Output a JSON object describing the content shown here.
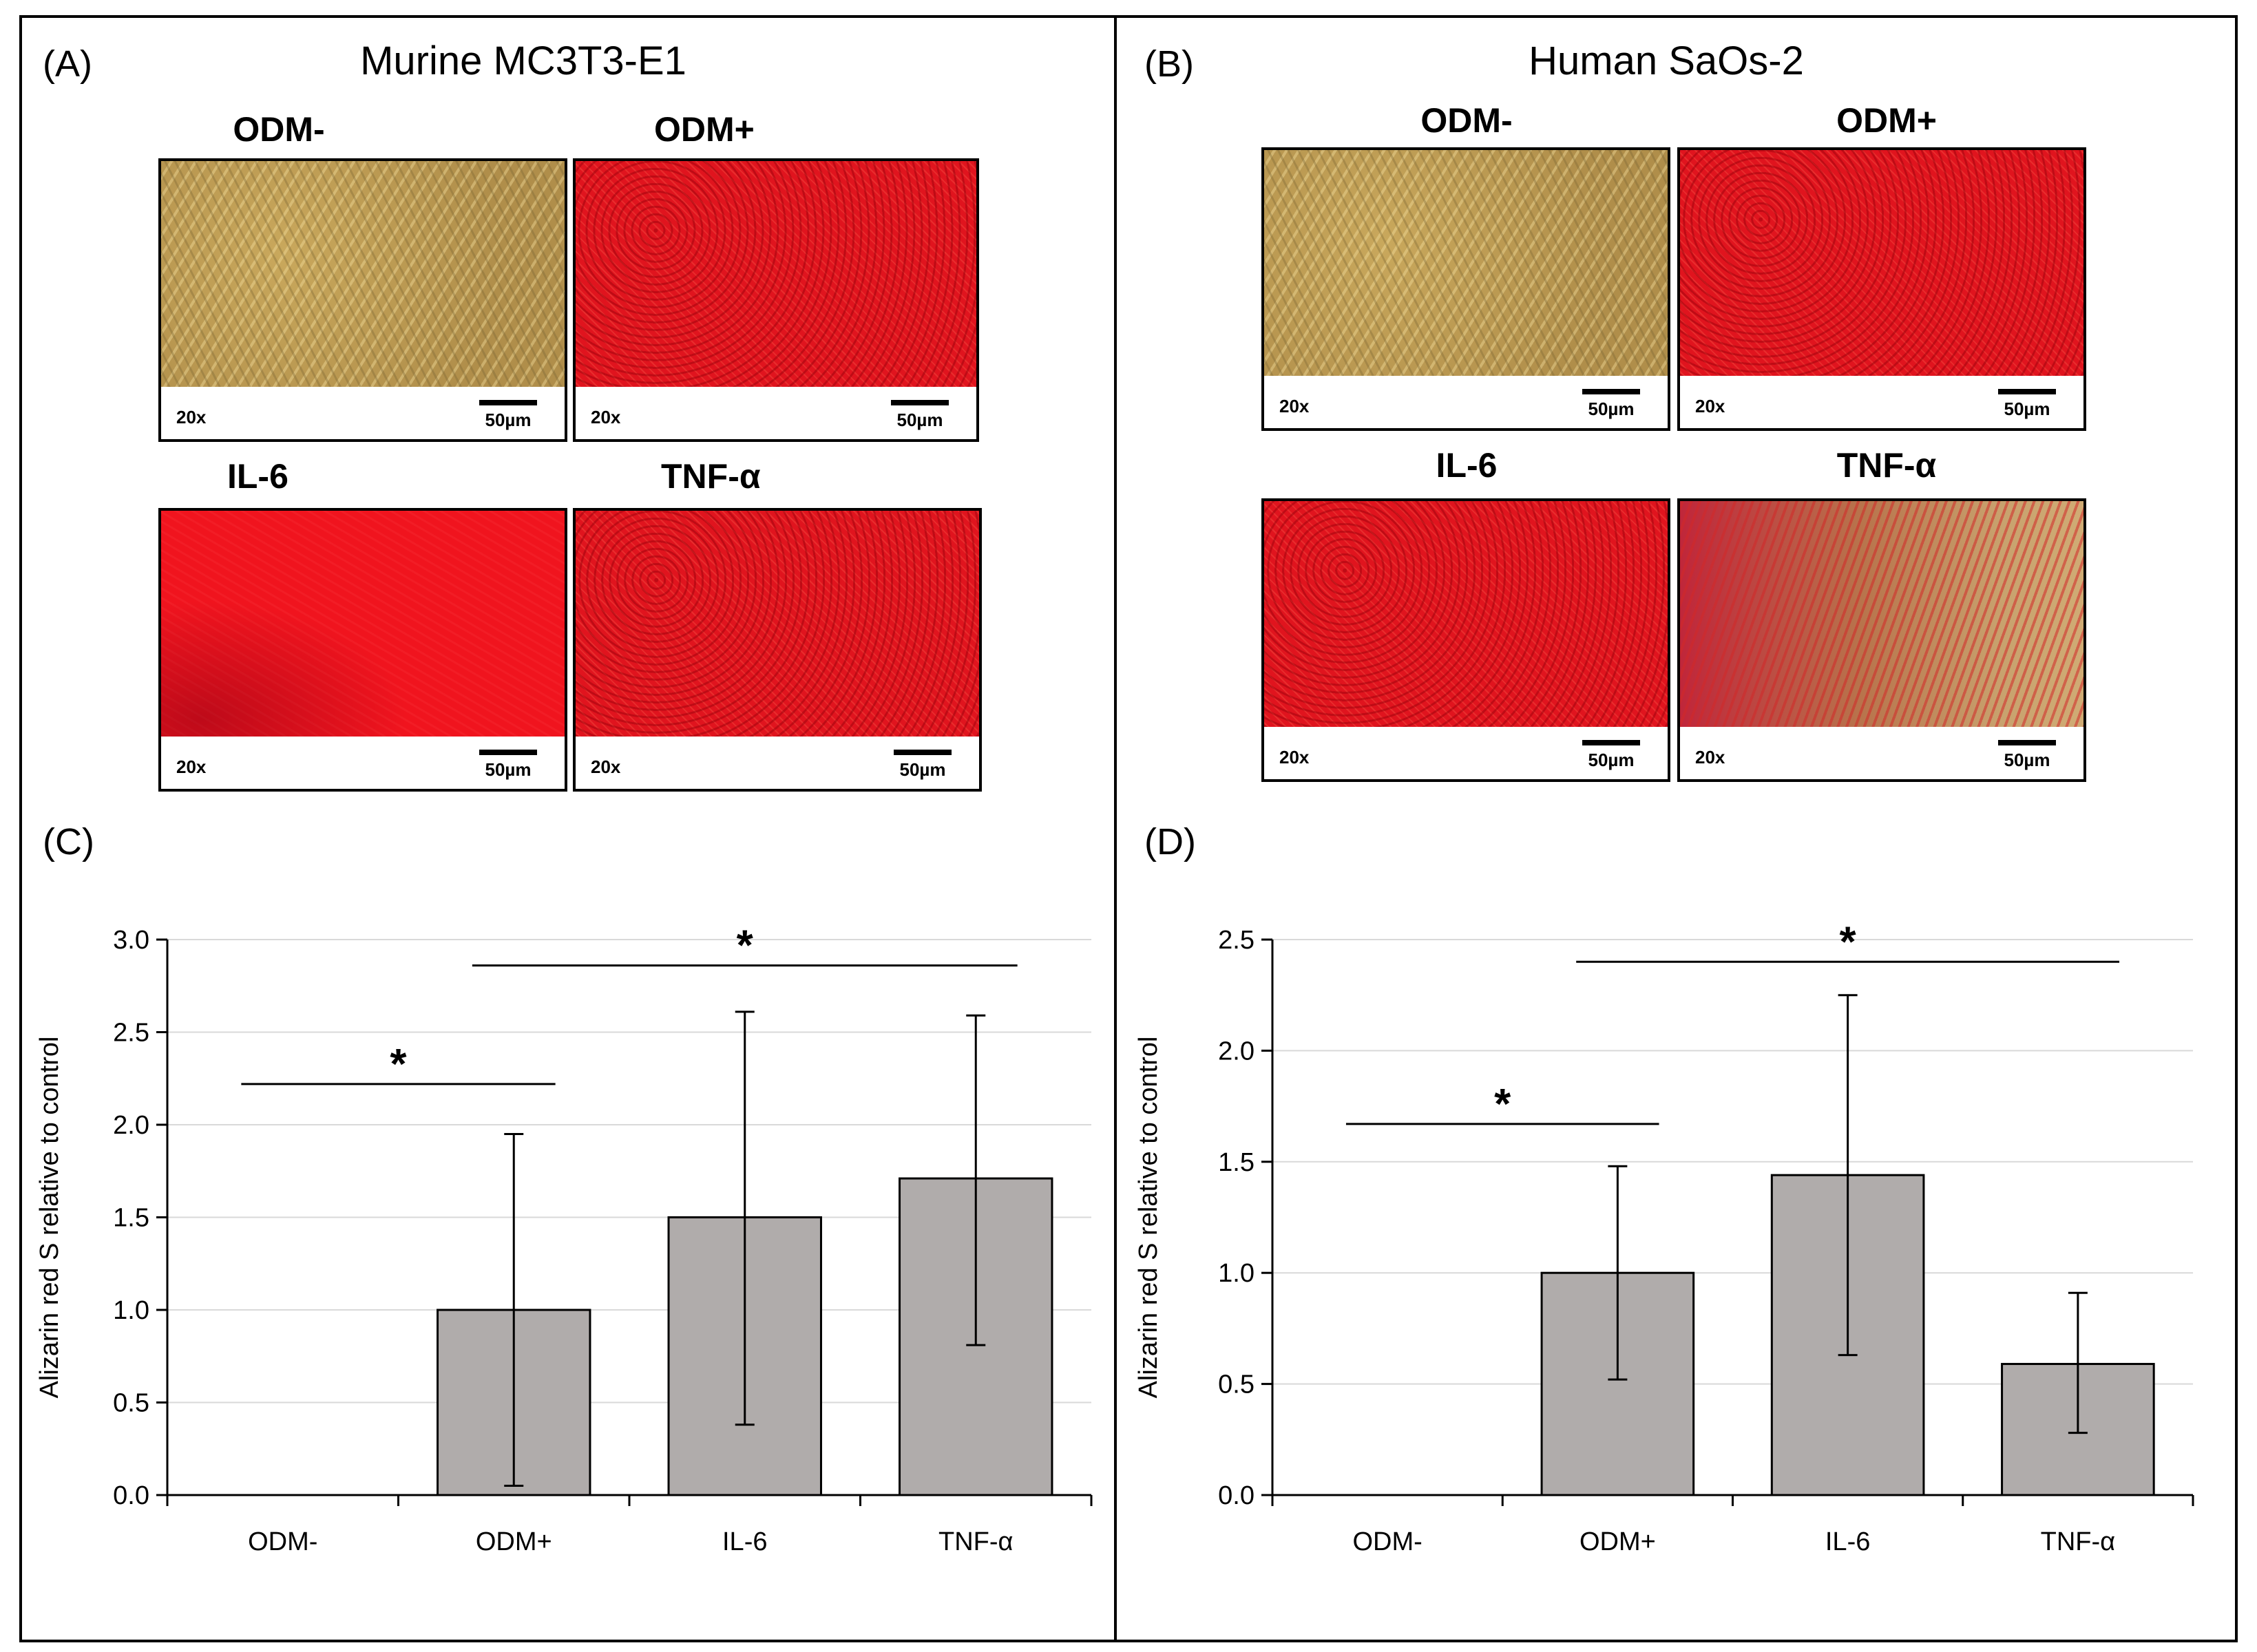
{
  "panels": {
    "a": {
      "label": "(A)",
      "title": "Murine MC3T3-E1",
      "images": [
        {
          "label": "ODM-",
          "magnification": "20x",
          "scale": "50µm"
        },
        {
          "label": "ODM+",
          "magnification": "20x",
          "scale": "50µm"
        },
        {
          "label": "IL-6",
          "magnification": "20x",
          "scale": "50µm"
        },
        {
          "label": "TNF-α",
          "magnification": "20x",
          "scale": "50µm"
        }
      ]
    },
    "b": {
      "label": "(B)",
      "title": "Human SaOs-2",
      "images": [
        {
          "label": "ODM-",
          "magnification": "20x",
          "scale": "50µm"
        },
        {
          "label": "ODM+",
          "magnification": "20x",
          "scale": "50µm"
        },
        {
          "label": "IL-6",
          "magnification": "20x",
          "scale": "50µm"
        },
        {
          "label": "TNF-α",
          "magnification": "20x",
          "scale": "50µm"
        }
      ]
    },
    "c": {
      "label": "(C)"
    },
    "d": {
      "label": "(D)"
    }
  },
  "colors": {
    "bar": "#b0acab",
    "grid": "#d9d9d9"
  },
  "chart_data": [
    {
      "type": "bar",
      "title": "",
      "xlabel": "",
      "ylabel": "Alizarin red S relative to control",
      "categories": [
        "ODM-",
        "ODM+",
        "IL-6",
        "TNF-α"
      ],
      "values": [
        0,
        1.0,
        1.5,
        1.71
      ],
      "error_low": [
        null,
        0.05,
        0.38,
        0.81
      ],
      "error_high": [
        null,
        1.95,
        2.61,
        2.59
      ],
      "ylim": [
        0,
        3.0
      ],
      "yticks": [
        "0.0",
        "0.5",
        "1.0",
        "1.5",
        "2.0",
        "2.5",
        "3.0"
      ],
      "grid": true,
      "significance": [
        {
          "from": 0,
          "to": 1,
          "y": 2.22,
          "label": "*"
        },
        {
          "from": 1,
          "to": 3,
          "y": 2.86,
          "label": "*"
        }
      ]
    },
    {
      "type": "bar",
      "title": "",
      "xlabel": "",
      "ylabel": "Alizarin red S relative to control",
      "categories": [
        "ODM-",
        "ODM+",
        "IL-6",
        "TNF-α"
      ],
      "values": [
        0,
        1.0,
        1.44,
        0.59
      ],
      "error_low": [
        null,
        0.52,
        0.63,
        0.28
      ],
      "error_high": [
        null,
        1.48,
        2.25,
        0.91
      ],
      "ylim": [
        0,
        2.5
      ],
      "yticks": [
        "0.0",
        "0.5",
        "1.0",
        "1.5",
        "2.0",
        "2.5"
      ],
      "grid": true,
      "significance": [
        {
          "from": 0,
          "to": 1,
          "y": 1.67,
          "label": "*"
        },
        {
          "from": 1,
          "to": 3,
          "y": 2.4,
          "label": "*"
        }
      ]
    }
  ]
}
